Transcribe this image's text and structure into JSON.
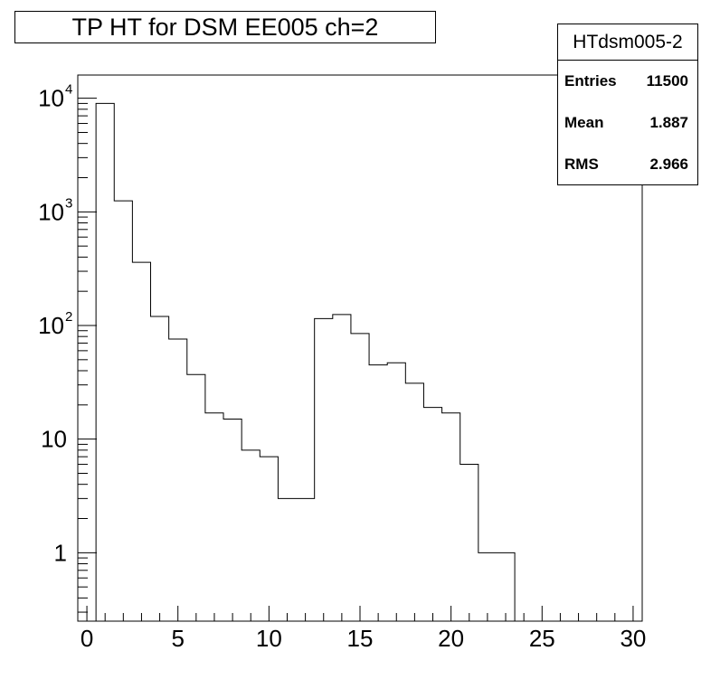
{
  "title": "TP HT for DSM EE005 ch=2",
  "stats": {
    "name": "HTdsm005-2",
    "rows": [
      {
        "label": "Entries",
        "value": "11500"
      },
      {
        "label": "Mean",
        "value": "1.887"
      },
      {
        "label": "RMS",
        "value": "2.966"
      }
    ]
  },
  "chart_data": {
    "type": "histogram",
    "title": "TP HT for DSM EE005 ch=2",
    "xlabel": "",
    "ylabel": "",
    "xlim": [
      -0.5,
      30.5
    ],
    "ylim": [
      0.25,
      16000
    ],
    "yscale": "log",
    "grid": false,
    "bin_width": 1,
    "bin_edges_start": 0.5,
    "counts": [
      9000,
      1250,
      360,
      120,
      76,
      37,
      17,
      15,
      8,
      7,
      3,
      3,
      115,
      125,
      85,
      45,
      47,
      31,
      19,
      17,
      6,
      1,
      1,
      0,
      0,
      0,
      0,
      0,
      0,
      0
    ],
    "x_ticks": [
      0,
      5,
      10,
      15,
      20,
      25,
      30
    ],
    "x_tick_labels": [
      "0",
      "5",
      "10",
      "15",
      "20",
      "25",
      "30"
    ],
    "y_ticks": [
      1,
      10,
      100,
      1000,
      10000
    ],
    "y_tick_labels": [
      {
        "base": "1",
        "exp": ""
      },
      {
        "base": "10",
        "exp": ""
      },
      {
        "base": "10",
        "exp": "2"
      },
      {
        "base": "10",
        "exp": "3"
      },
      {
        "base": "10",
        "exp": "4"
      }
    ],
    "colors": {
      "line": "#000000",
      "background": "#ffffff"
    }
  }
}
